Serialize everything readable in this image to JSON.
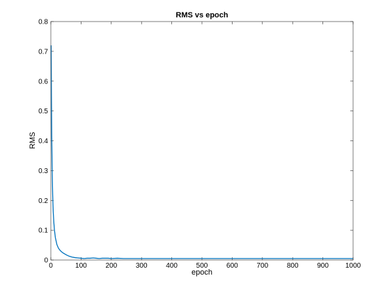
{
  "chart_data": {
    "type": "line",
    "title": "RMS vs epoch",
    "xlabel": "epoch",
    "ylabel": "RMS",
    "xlim": [
      0,
      1000
    ],
    "ylim": [
      0,
      0.8
    ],
    "xticks": [
      0,
      100,
      200,
      300,
      400,
      500,
      600,
      700,
      800,
      900,
      1000
    ],
    "yticks": [
      0,
      0.1,
      0.2,
      0.3,
      0.4,
      0.5,
      0.6,
      0.7,
      0.8
    ],
    "xtick_labels": [
      "0",
      "100",
      "200",
      "300",
      "400",
      "500",
      "600",
      "700",
      "800",
      "900",
      "1000"
    ],
    "ytick_labels": [
      "0",
      "0.1",
      "0.2",
      "0.3",
      "0.4",
      "0.5",
      "0.6",
      "0.7",
      "0.8"
    ],
    "grid": false,
    "series": [
      {
        "color": "#0072bd",
        "x": [
          1,
          2,
          3,
          4,
          5,
          6,
          8,
          10,
          12,
          15,
          20,
          25,
          30,
          35,
          40,
          50,
          60,
          70,
          80,
          90,
          100,
          110,
          120,
          130,
          140,
          150,
          160,
          170,
          180,
          190,
          200,
          220,
          240,
          260,
          280,
          300,
          350,
          400,
          450,
          500,
          550,
          600,
          650,
          700,
          750,
          800,
          850,
          900,
          950,
          1000
        ],
        "y": [
          0.72,
          0.55,
          0.42,
          0.33,
          0.27,
          0.22,
          0.16,
          0.125,
          0.1,
          0.075,
          0.052,
          0.04,
          0.033,
          0.028,
          0.024,
          0.018,
          0.013,
          0.01,
          0.008,
          0.007,
          0.006,
          0.005,
          0.006,
          0.006,
          0.007,
          0.006,
          0.005,
          0.006,
          0.006,
          0.006,
          0.005,
          0.006,
          0.005,
          0.005,
          0.005,
          0.005,
          0.005,
          0.005,
          0.005,
          0.005,
          0.005,
          0.005,
          0.005,
          0.005,
          0.005,
          0.005,
          0.005,
          0.005,
          0.005,
          0.005
        ]
      }
    ]
  }
}
